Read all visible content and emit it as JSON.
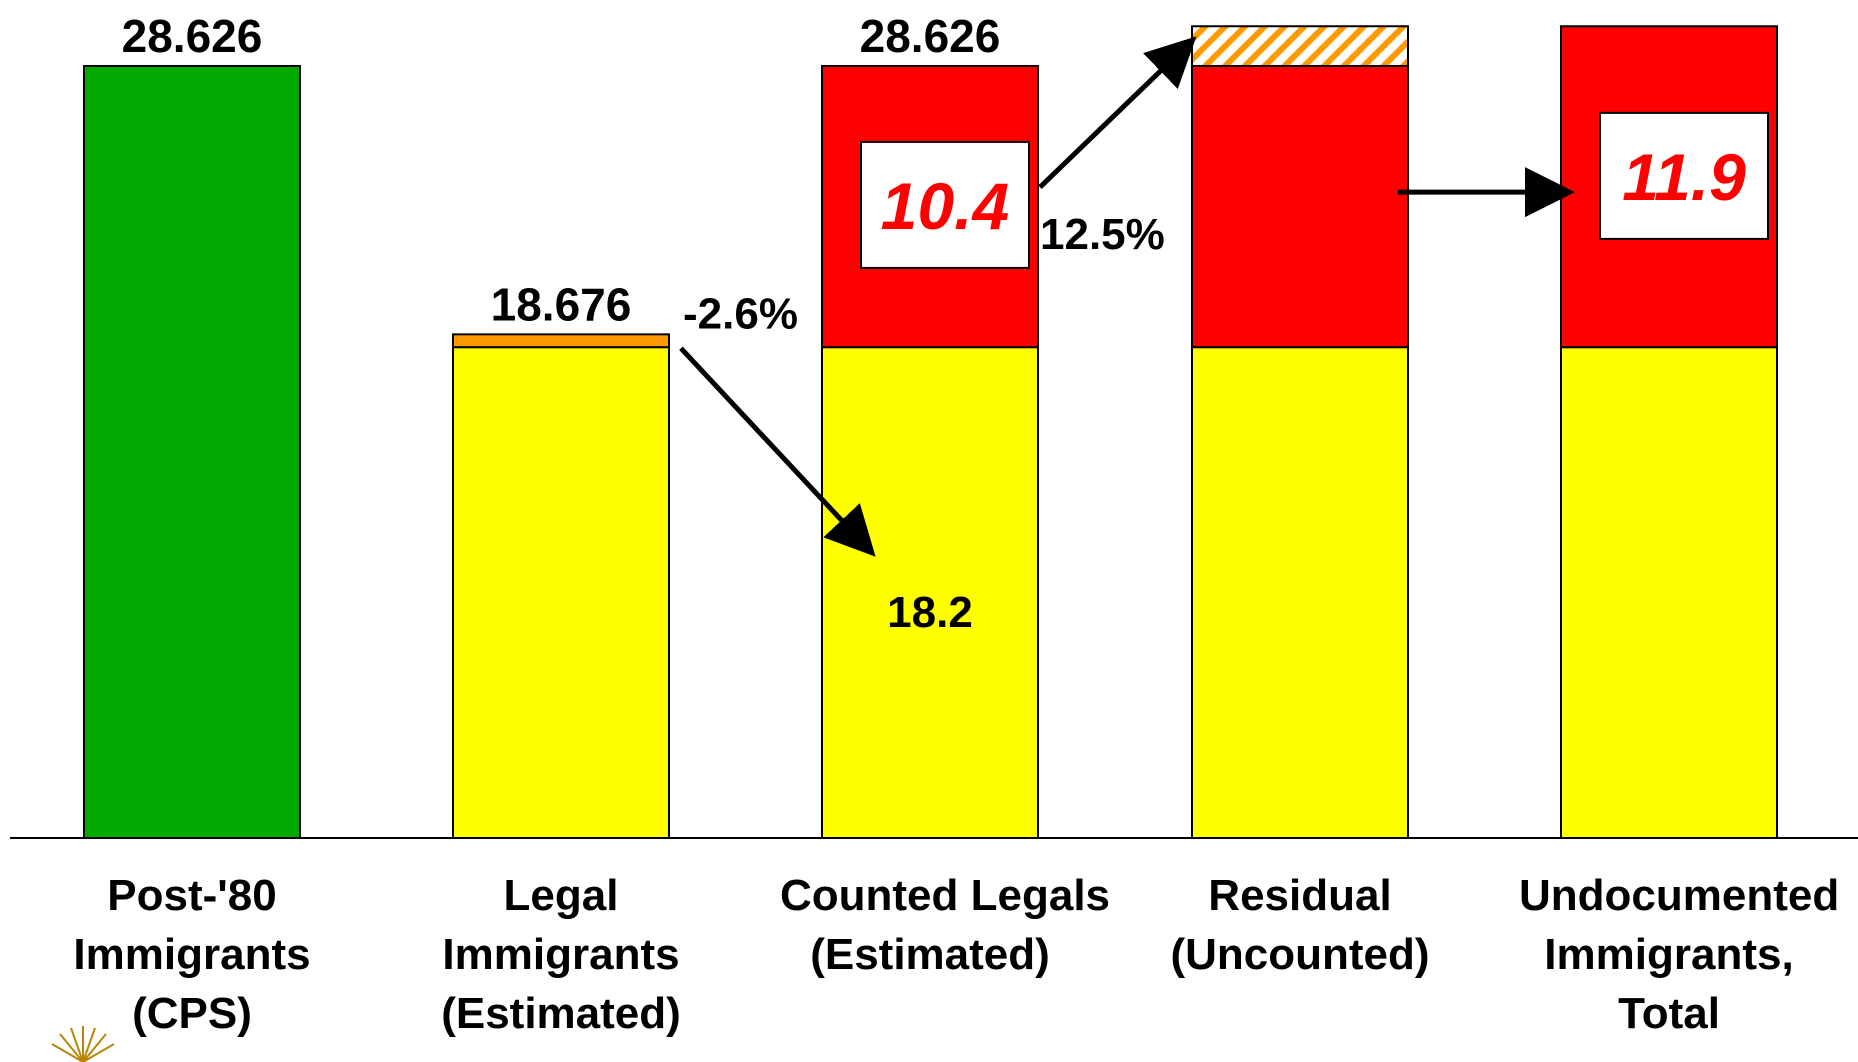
{
  "colors": {
    "total": "#00AA00",
    "legal": "#FFFF00",
    "adjustment": "#FF9900",
    "undocumented": "#FF0000",
    "uncounted_hatch": "#FF9900",
    "label_box_text": "#FF0000",
    "text": "#000000"
  },
  "chart_data": {
    "type": "bar",
    "stacked": true,
    "ylim": [
      0,
      28.626
    ],
    "categories": [
      [
        "Post-'80",
        "Immigrants",
        "(CPS)"
      ],
      [
        "Legal",
        "Immigrants",
        "(Estimated)"
      ],
      [
        "Counted Legals",
        "(Estimated)"
      ],
      [
        "Residual",
        "(Uncounted)"
      ],
      [
        "Undocumented",
        "Immigrants,",
        "Total"
      ]
    ],
    "bars": [
      {
        "segments": [
          {
            "role": "total",
            "value": 28.626
          }
        ],
        "top_label": "28.626"
      },
      {
        "segments": [
          {
            "role": "legal",
            "value": 18.2
          },
          {
            "role": "adjustment",
            "value": 0.476
          }
        ],
        "top_label": "18.676"
      },
      {
        "segments": [
          {
            "role": "legal",
            "value": 18.2
          },
          {
            "role": "undocumented",
            "value": 10.426
          }
        ],
        "top_label": "28.626",
        "boxed_label": "10.4",
        "inner_label": "18.2"
      },
      {
        "segments": [
          {
            "role": "legal",
            "value": 18.2
          },
          {
            "role": "undocumented",
            "value": 10.426
          },
          {
            "role": "uncounted_hatch",
            "value": 1.474
          }
        ]
      },
      {
        "segments": [
          {
            "role": "legal",
            "value": 18.2
          },
          {
            "role": "undocumented",
            "value": 11.9
          }
        ],
        "boxed_label": "11.9"
      }
    ],
    "annotations": [
      {
        "text": "-2.6%",
        "from_bar": 1,
        "to_bar": 2
      },
      {
        "text": "12.5%",
        "from_bar": 2,
        "to_bar": 3
      }
    ],
    "arrows": [
      {
        "from_bar": 1,
        "to_bar": 2,
        "direction": "down"
      },
      {
        "from_bar": 2,
        "to_bar": 3,
        "direction": "up"
      },
      {
        "from_bar": 3,
        "to_bar": 4,
        "direction": "right"
      }
    ],
    "grid": false,
    "legend": "none"
  },
  "logo": {
    "name": "sunburst-logo-icon",
    "color": "#B8860B"
  }
}
